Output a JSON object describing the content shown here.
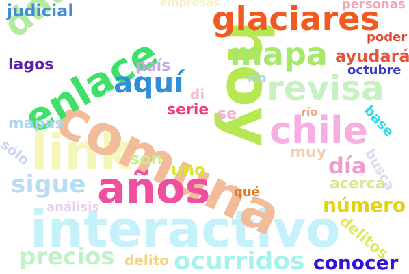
{
  "colors": {
    "judicial": "#3f8fd6",
    "empresas": "#f5f0c2",
    "personas": "#f2a6b6",
    "poder": "#e8412b",
    "glaciares": "#f25b1f",
    "ayudara": "#e6543a",
    "octubre": "#3b37c4",
    "mapa": "#a7e86a",
    "rio": "#a9d8e6",
    "datos": "#b5eba1",
    "enlace": "#3fe06a",
    "hoy": "#b5e853",
    "lagos": "#5a1fa8",
    "pais": "#c6a5e3",
    "aqui": "#2d8fd9",
    "revisa": "#c8f1c3",
    "di": "#f0c0d6",
    "serie": "#f23a7a",
    "se": "#f5b3cc",
    "rio2": "#f2a27a",
    "comuna": "#f2bc9a",
    "chile": "#f7aee0",
    "base": "#2fd7e8",
    "mapas": "#a8d7ee",
    "solo": "#c9d6f2",
    "link": "#f4f7b8",
    "muy": "#f2cfb2",
    "busca": "#d7dcef",
    "son": "#c4f08a",
    "dia": "#f299cf",
    "uno": "#d8e63a",
    "sigue": "#b7ddf3",
    "anos": "#ef4f9f",
    "acerca": "#d4ea8d",
    "analisis": "#e7cfee",
    "que": "#e47a1f",
    "numero": "#e5d20f",
    "interactivo": "#c5f1fb",
    "delitos": "#e2e85e",
    "precios": "#bff2c6",
    "delito": "#f2d47e",
    "ocurridos": "#a7f2ee",
    "conocer": "#3412d8"
  },
  "words": {
    "judicial": "judicial",
    "empresas": "empresas",
    "personas": "personas",
    "poder": "poder",
    "glaciares": "glaciares",
    "ayudara": "ayudará",
    "octubre": "octubre",
    "mapa": "mapa",
    "rio": "río",
    "datos": "datos",
    "enlace": "enlace",
    "hoy": "hoy",
    "lagos": "lagos",
    "pais": "país",
    "aqui": "aquí",
    "revisa": "revisa",
    "di": "di",
    "serie": "serie",
    "se": "se",
    "rio2": "río",
    "comuna": "comuna",
    "chile": "chile",
    "base": "base",
    "mapas": "mapas",
    "solo": "sólo",
    "link": "link",
    "muy": "muy",
    "busca": "busca",
    "son": "son",
    "dia": "día",
    "uno": "uno",
    "sigue": "sigue",
    "anos": "años",
    "acerca": "acerca",
    "analisis": "análisis",
    "que": "qué",
    "numero": "número",
    "interactivo": "interactivo",
    "delitos": "delitos",
    "precios": "precios",
    "delito": "delito",
    "ocurridos": "ocurridos",
    "conocer": "conocer"
  }
}
